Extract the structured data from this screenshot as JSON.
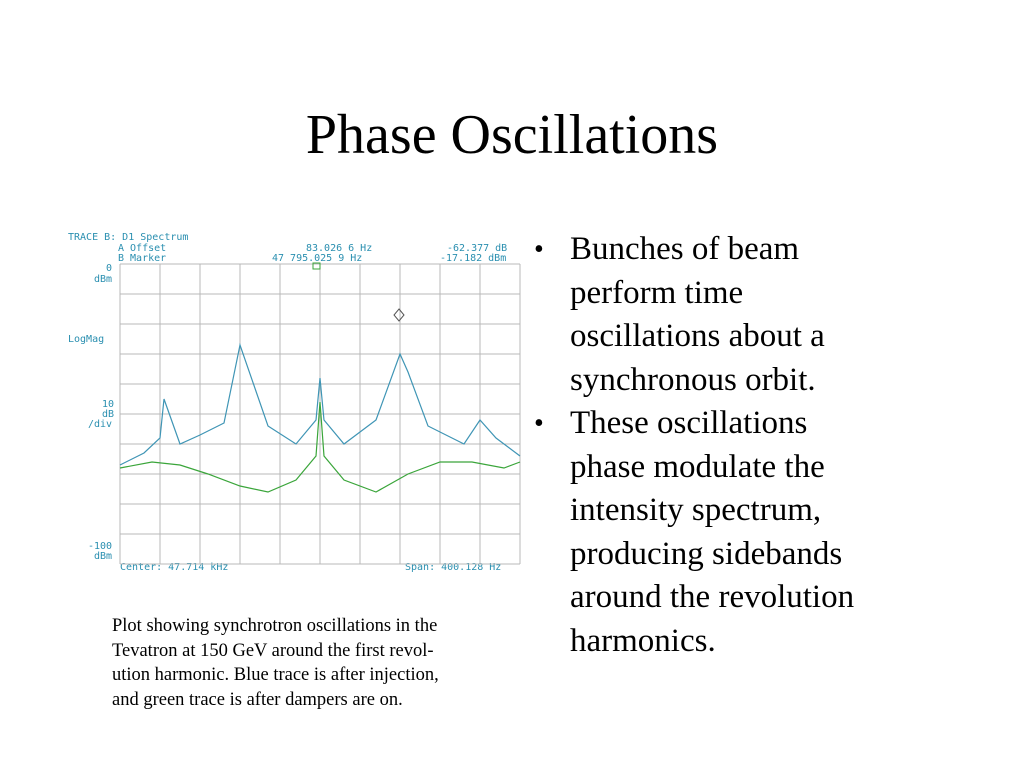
{
  "slide": {
    "title": "Phase Oscillations",
    "bullets": [
      {
        "lines": [
          "Bunches of beam",
          "perform time",
          "oscillations about a",
          "synchronous orbit."
        ]
      },
      {
        "lines": [
          "These oscillations",
          "phase modulate the",
          "intensity spectrum,",
          "producing sidebands",
          "around the revolution",
          "harmonics."
        ]
      }
    ],
    "caption_lines": [
      "Plot showing synchrotron oscillations in the",
      "Tevatron at 150 GeV around the first revol-",
      "ution harmonic.  Blue trace is after injection,",
      "and green trace is after dampers are on."
    ]
  },
  "analyzer": {
    "trace_label": "TRACE B: D1 Spectrum",
    "offset_label": "A Offset",
    "offset_freq": "83.026 6 Hz",
    "offset_amp": "-62.377 dB",
    "marker_label": "B Marker",
    "marker_freq": "47 795.025 9 Hz",
    "marker_amp": "-17.182 dBm",
    "ref_top": "0",
    "ref_unit": "dBm",
    "mode": "LogMag",
    "scale_value": "10",
    "scale_unit": "dB",
    "scale_div": "/div",
    "ref_bottom": "-100",
    "ref_bottom_unit": "dBm",
    "center": "Center: 47.714 kHz",
    "span": "Span: 400.128 Hz",
    "colors": {
      "text": "#2a8fb0",
      "grid": "#b8b8b8",
      "blue_trace": "#3f95b5",
      "green_trace": "#3aa53a"
    }
  },
  "chart_data": {
    "type": "line",
    "title": "",
    "xlabel": "",
    "ylabel": "",
    "ylim": [
      -100,
      0
    ],
    "xlim": [
      0,
      10
    ],
    "grid": true,
    "series": [
      {
        "color": "#3f95b5",
        "x": [
          0,
          0.6,
          1.0,
          1.1,
          1.5,
          2.0,
          2.6,
          3.0,
          3.7,
          4.4,
          4.9,
          5.0,
          5.1,
          5.6,
          6.4,
          7.0,
          7.2,
          7.7,
          8.6,
          9.0,
          9.4,
          10
        ],
        "y": [
          -67,
          -63,
          -58,
          -45,
          -60,
          -57,
          -53,
          -27,
          -54,
          -60,
          -52,
          -38,
          -52,
          -60,
          -52,
          -30,
          -36,
          -54,
          -60,
          -52,
          -58,
          -64
        ]
      },
      {
        "color": "#3aa53a",
        "x": [
          0,
          0.8,
          1.5,
          2.2,
          3.0,
          3.7,
          4.4,
          4.9,
          5.0,
          5.1,
          5.6,
          6.4,
          7.2,
          8.0,
          8.8,
          9.6,
          10
        ],
        "y": [
          -68,
          -66,
          -67,
          -70,
          -74,
          -76,
          -72,
          -64,
          -46,
          -64,
          -72,
          -76,
          -70,
          -66,
          -66,
          -68,
          -66
        ]
      }
    ]
  }
}
